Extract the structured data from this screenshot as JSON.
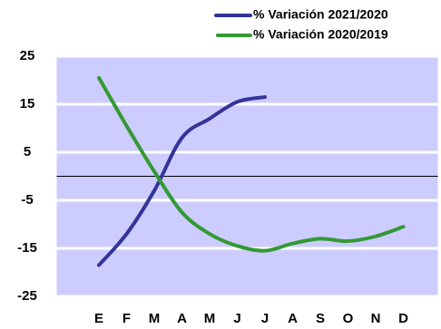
{
  "chart_data": {
    "type": "line",
    "categories": [
      "E",
      "F",
      "M",
      "A",
      "M",
      "J",
      "J",
      "A",
      "S",
      "O",
      "N",
      "D"
    ],
    "series": [
      {
        "name": "% Variación 2021/2020",
        "color": "#333399",
        "values": [
          -18.5,
          -12,
          -3,
          8,
          12,
          15.5,
          16.5,
          null,
          null,
          null,
          null,
          null
        ]
      },
      {
        "name": "% Variación 2020/2019",
        "color": "#339933",
        "values": [
          20.5,
          10.5,
          1,
          -7.5,
          -12,
          -14.5,
          -15.5,
          -14,
          -13,
          -13.5,
          -12.5,
          -10.5
        ]
      }
    ],
    "ylim": [
      -25,
      25
    ],
    "yticks": [
      25,
      15,
      5,
      -5,
      -15,
      -25
    ],
    "grid": true,
    "zero_line": true,
    "legend": "upper right",
    "background": "#ccccff"
  }
}
